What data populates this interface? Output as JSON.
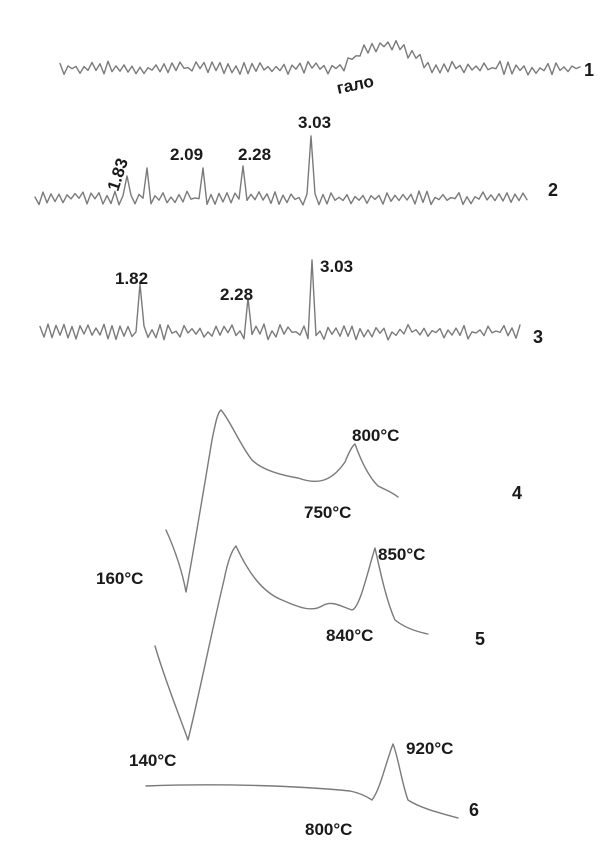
{
  "chart_data": [
    {
      "type": "line",
      "title": "",
      "xlabel": "",
      "ylabel": "",
      "series": [
        {
          "curve_number": "1",
          "annotations": [
            "гало"
          ]
        },
        {
          "curve_number": "2",
          "annotations": [
            "1.83",
            "2.09",
            "2.28",
            "3.03"
          ]
        },
        {
          "curve_number": "3",
          "annotations": [
            "1.82",
            "2.28",
            "3.03"
          ]
        }
      ]
    },
    {
      "type": "line",
      "title": "",
      "xlabel": "",
      "ylabel": "",
      "series": [
        {
          "curve_number": "4",
          "endotherm": "160°C",
          "dip": "750°C",
          "peak": "800°C"
        },
        {
          "curve_number": "5",
          "endotherm": "",
          "dip": "840°C",
          "peak": "850°C"
        },
        {
          "curve_number": "6",
          "endotherm": "140°C",
          "dip": "800°C",
          "peak": "920°C"
        }
      ]
    }
  ],
  "stroke_color": "#7a7a7a",
  "text_color": "#1a1a1a"
}
